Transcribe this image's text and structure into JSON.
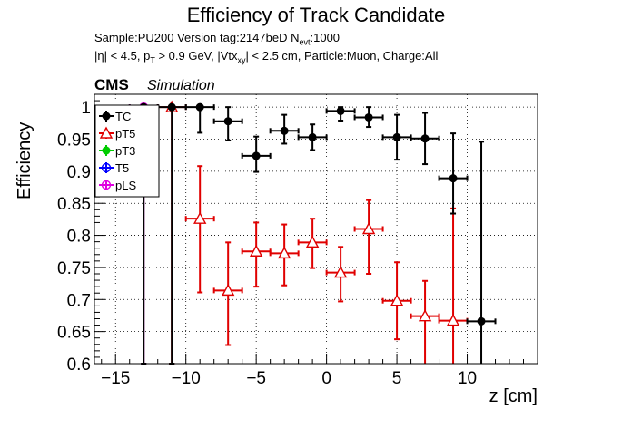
{
  "header": {
    "title": "Efficiency of Track Candidate",
    "sample_line": "Sample:PU200   Version tag:2147beD  N",
    "sample_sub": "evt",
    "sample_tail": ":1000",
    "cuts_prefix": "|η| < 4.5, p",
    "cuts_pt_sub": "T",
    "cuts_mid": " > 0.9 GeV, |Vtx",
    "cuts_vtx_sub": "xy",
    "cuts_tail": "| < 2.5 cm, Particle:Muon, Charge:All",
    "cms": "CMS",
    "simulation": "Simulation"
  },
  "chart_data": {
    "type": "scatter",
    "title": "Efficiency of Track Candidate",
    "xlabel": "z [cm]",
    "ylabel": "Efficiency",
    "xlim": [
      -16.5,
      15
    ],
    "ylim": [
      0.6,
      1.02
    ],
    "x_ticks": [
      -15,
      -10,
      -5,
      0,
      5,
      10
    ],
    "y_ticks": [
      0.6,
      0.65,
      0.7,
      0.75,
      0.8,
      0.85,
      0.9,
      0.95,
      1
    ],
    "grid": true,
    "legend_position": "top-left",
    "series": [
      {
        "name": "TC",
        "color": "#000000",
        "marker": "filled-circle",
        "x": [
          -13,
          -11,
          -9,
          -7,
          -5,
          -3,
          -1,
          1,
          3,
          5,
          7,
          9,
          11
        ],
        "y": [
          1.0,
          1.0,
          1.0,
          0.978,
          0.924,
          0.963,
          0.953,
          0.994,
          0.984,
          0.953,
          0.951,
          0.889,
          0.666
        ],
        "yerr_low": [
          0.4,
          0.4,
          0.04,
          0.03,
          0.025,
          0.02,
          0.02,
          0.015,
          0.015,
          0.035,
          0.04,
          0.055,
          0.17
        ],
        "yerr_high": [
          0,
          0,
          0,
          0.022,
          0.03,
          0.025,
          0.02,
          0.006,
          0.016,
          0.035,
          0.04,
          0.07,
          0.28
        ],
        "xerr": 1
      },
      {
        "name": "pT5",
        "color": "#e00000",
        "marker": "open-triangle",
        "x": [
          -11,
          -9,
          -7,
          -5,
          -3,
          -1,
          1,
          3,
          5,
          7,
          9
        ],
        "y": [
          1.0,
          0.826,
          0.714,
          0.775,
          0.772,
          0.789,
          0.742,
          0.81,
          0.698,
          0.674,
          0.667
        ],
        "yerr_low": [
          0.4,
          0.115,
          0.085,
          0.055,
          0.05,
          0.04,
          0.045,
          0.07,
          0.06,
          0.075,
          0.07
        ],
        "yerr_high": [
          0,
          0.082,
          0.075,
          0.045,
          0.045,
          0.037,
          0.04,
          0.045,
          0.06,
          0.055,
          0.175
        ],
        "xerr": 1
      },
      {
        "name": "pT3",
        "color": "#00cc00",
        "marker": "filled-circle",
        "x": [],
        "y": []
      },
      {
        "name": "T5",
        "color": "#0000ff",
        "marker": "open-circle",
        "x": [],
        "y": []
      },
      {
        "name": "pLS",
        "color": "#e000e0",
        "marker": "open-circle",
        "x": [
          -13
        ],
        "y": [
          1.0
        ],
        "yerr_low": [
          0.4
        ],
        "yerr_high": [
          0
        ],
        "xerr": 1
      }
    ]
  }
}
